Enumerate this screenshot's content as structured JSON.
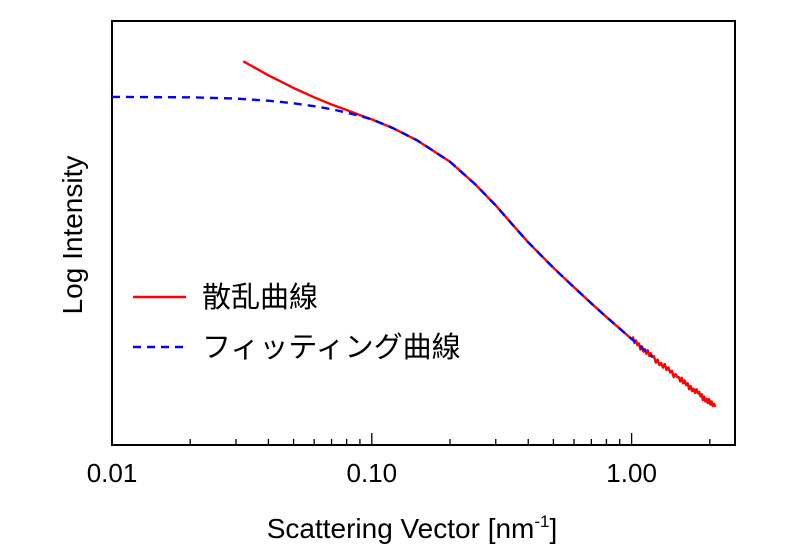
{
  "chart_data": {
    "type": "line",
    "xscale": "log",
    "xlim": [
      0.01,
      2.5
    ],
    "ylim": [
      0,
      10
    ],
    "xlabel_main": "Scattering Vector [nm",
    "xlabel_sup": "-1",
    "xlabel_end": "]",
    "ylabel": "Log Intensity",
    "y_tick_labels_visible": false,
    "major_ticks": [
      {
        "value": 0.01,
        "label": "0.01"
      },
      {
        "value": 0.1,
        "label": "0.10"
      },
      {
        "value": 1.0,
        "label": "1.00"
      }
    ],
    "series": [
      {
        "name": "散乱曲線",
        "color": "#ff0000",
        "dash": "solid",
        "x": [
          0.032,
          0.04,
          0.05,
          0.06,
          0.07,
          0.08,
          0.09,
          0.1,
          0.12,
          0.15,
          0.2,
          0.25,
          0.3,
          0.35,
          0.4,
          0.5,
          0.6,
          0.7,
          0.8,
          1.0,
          1.2,
          1.5,
          1.8,
          2.1
        ],
        "y": [
          9.05,
          8.72,
          8.42,
          8.2,
          8.03,
          7.9,
          7.78,
          7.68,
          7.48,
          7.18,
          6.68,
          6.15,
          5.65,
          5.18,
          4.78,
          4.18,
          3.72,
          3.34,
          3.02,
          2.5,
          2.08,
          1.6,
          1.22,
          0.9
        ],
        "noisy_from": 0.9
      },
      {
        "name": "フィッティング曲線",
        "color": "#0000ff",
        "dash": "dashed",
        "x": [
          0.01,
          0.02,
          0.03,
          0.04,
          0.05,
          0.06,
          0.07,
          0.08,
          0.09,
          0.1,
          0.12,
          0.15,
          0.2,
          0.25,
          0.3,
          0.35,
          0.4,
          0.5,
          0.6,
          0.7,
          0.8,
          1.0,
          1.2
        ],
        "y": [
          8.21,
          8.2,
          8.17,
          8.12,
          8.06,
          7.99,
          7.92,
          7.84,
          7.76,
          7.68,
          7.48,
          7.18,
          6.68,
          6.15,
          5.65,
          5.18,
          4.78,
          4.18,
          3.72,
          3.34,
          3.02,
          2.5,
          2.08
        ]
      }
    ],
    "legend_position": "center-left"
  }
}
